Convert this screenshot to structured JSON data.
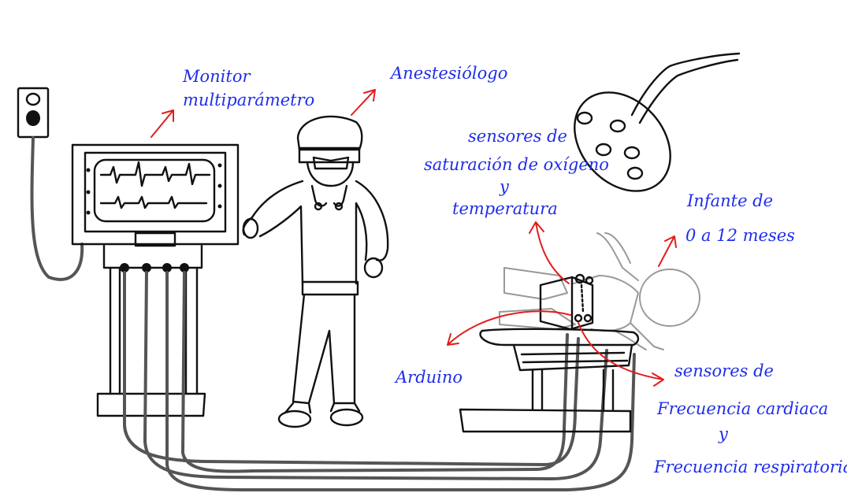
{
  "labels": {
    "monitor_line1": "Monitor",
    "monitor_line2": "multiparámetro",
    "anesthesiologist": "Anestesiólogo",
    "spo2_line1": "sensores de",
    "spo2_line2": "saturación de oxígeno",
    "spo2_line3": "y",
    "spo2_line4": "temperatura",
    "infant_line1": "Infante de",
    "infant_line2": "0 a 12 meses",
    "arduino": "Arduino",
    "hr_line1": "sensores de",
    "hr_line2": "Frecuencia cardiaca",
    "hr_line3": "y",
    "hr_line4": "Frecuencia respiratoria"
  },
  "colors": {
    "label": "#1f2ee8",
    "arrow": "#e11d1d",
    "ink": "#111111",
    "patient": "#999999",
    "cable": "#555555"
  }
}
